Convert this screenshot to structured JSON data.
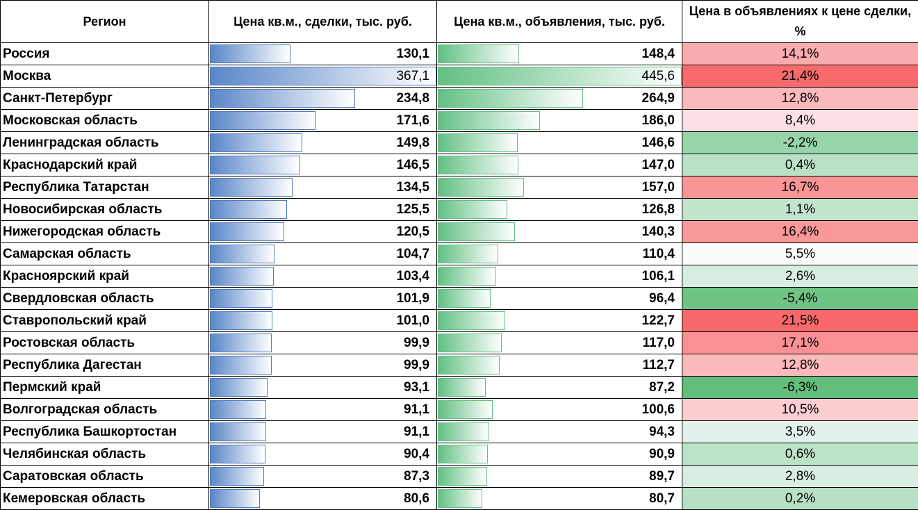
{
  "chart_data": {
    "type": "table",
    "columns": [
      "Регион",
      "Цена кв.м., сделки, тыс. руб.",
      "Цена кв.м., объявления, тыс. руб.",
      "Цена в объявлениях к цене сделки, %"
    ],
    "rows": [
      {
        "region": "Россия",
        "deal": 130.1,
        "deal_label": "130,1",
        "ask": 148.4,
        "ask_label": "148,4",
        "ratio": 14.1,
        "ratio_label": "14,1%"
      },
      {
        "region": "Москва",
        "deal": 367.1,
        "deal_label": "367,1",
        "ask": 445.6,
        "ask_label": "445,6",
        "ratio": 21.4,
        "ratio_label": "21,4%"
      },
      {
        "region": "Санкт-Петербург",
        "deal": 234.8,
        "deal_label": "234,8",
        "ask": 264.9,
        "ask_label": "264,9",
        "ratio": 12.8,
        "ratio_label": "12,8%"
      },
      {
        "region": "Московская область",
        "deal": 171.6,
        "deal_label": "171,6",
        "ask": 186.0,
        "ask_label": "186,0",
        "ratio": 8.4,
        "ratio_label": "8,4%"
      },
      {
        "region": "Ленинградская область",
        "deal": 149.8,
        "deal_label": "149,8",
        "ask": 146.6,
        "ask_label": "146,6",
        "ratio": -2.2,
        "ratio_label": "-2,2%"
      },
      {
        "region": "Краснодарский край",
        "deal": 146.5,
        "deal_label": "146,5",
        "ask": 147.0,
        "ask_label": "147,0",
        "ratio": 0.4,
        "ratio_label": "0,4%"
      },
      {
        "region": "Республика Татарстан",
        "deal": 134.5,
        "deal_label": "134,5",
        "ask": 157.0,
        "ask_label": "157,0",
        "ratio": 16.7,
        "ratio_label": "16,7%"
      },
      {
        "region": "Новосибирская область",
        "deal": 125.5,
        "deal_label": "125,5",
        "ask": 126.8,
        "ask_label": "126,8",
        "ratio": 1.1,
        "ratio_label": "1,1%"
      },
      {
        "region": "Нижегородская область",
        "deal": 120.5,
        "deal_label": "120,5",
        "ask": 140.3,
        "ask_label": "140,3",
        "ratio": 16.4,
        "ratio_label": "16,4%"
      },
      {
        "region": "Самарская область",
        "deal": 104.7,
        "deal_label": "104,7",
        "ask": 110.4,
        "ask_label": "110,4",
        "ratio": 5.5,
        "ratio_label": "5,5%"
      },
      {
        "region": "Красноярский край",
        "deal": 103.4,
        "deal_label": "103,4",
        "ask": 106.1,
        "ask_label": "106,1",
        "ratio": 2.6,
        "ratio_label": "2,6%"
      },
      {
        "region": "Свердловская область",
        "deal": 101.9,
        "deal_label": "101,9",
        "ask": 96.4,
        "ask_label": "96,4",
        "ratio": -5.4,
        "ratio_label": "-5,4%"
      },
      {
        "region": "Ставропольский край",
        "deal": 101.0,
        "deal_label": "101,0",
        "ask": 122.7,
        "ask_label": "122,7",
        "ratio": 21.5,
        "ratio_label": "21,5%"
      },
      {
        "region": "Ростовская область",
        "deal": 99.9,
        "deal_label": "99,9",
        "ask": 117.0,
        "ask_label": "117,0",
        "ratio": 17.1,
        "ratio_label": "17,1%"
      },
      {
        "region": "Республика Дагестан",
        "deal": 99.9,
        "deal_label": "99,9",
        "ask": 112.7,
        "ask_label": "112,7",
        "ratio": 12.8,
        "ratio_label": "12,8%"
      },
      {
        "region": "Пермский край",
        "deal": 93.1,
        "deal_label": "93,1",
        "ask": 87.2,
        "ask_label": "87,2",
        "ratio": -6.3,
        "ratio_label": "-6,3%"
      },
      {
        "region": "Волгоградская область",
        "deal": 91.1,
        "deal_label": "91,1",
        "ask": 100.6,
        "ask_label": "100,6",
        "ratio": 10.5,
        "ratio_label": "10,5%"
      },
      {
        "region": "Республика Башкортостан",
        "deal": 91.1,
        "deal_label": "91,1",
        "ask": 94.3,
        "ask_label": "94,3",
        "ratio": 3.5,
        "ratio_label": "3,5%"
      },
      {
        "region": "Челябинская область",
        "deal": 90.4,
        "deal_label": "90,4",
        "ask": 90.9,
        "ask_label": "90,9",
        "ratio": 0.6,
        "ratio_label": "0,6%"
      },
      {
        "region": "Саратовская область",
        "deal": 87.3,
        "deal_label": "87,3",
        "ask": 89.7,
        "ask_label": "89,7",
        "ratio": 2.8,
        "ratio_label": "2,8%"
      },
      {
        "region": "Кемеровская область",
        "deal": 80.6,
        "deal_label": "80,6",
        "ask": 80.7,
        "ask_label": "80,7",
        "ratio": 0.2,
        "ratio_label": "0,2%"
      }
    ],
    "colors": {
      "deal_bar": "#5a86c8",
      "ask_bar": "#63c084",
      "ratio_low": "#63be7b",
      "ratio_mid": "#fcfcff",
      "ratio_high": "#f8696b"
    }
  }
}
